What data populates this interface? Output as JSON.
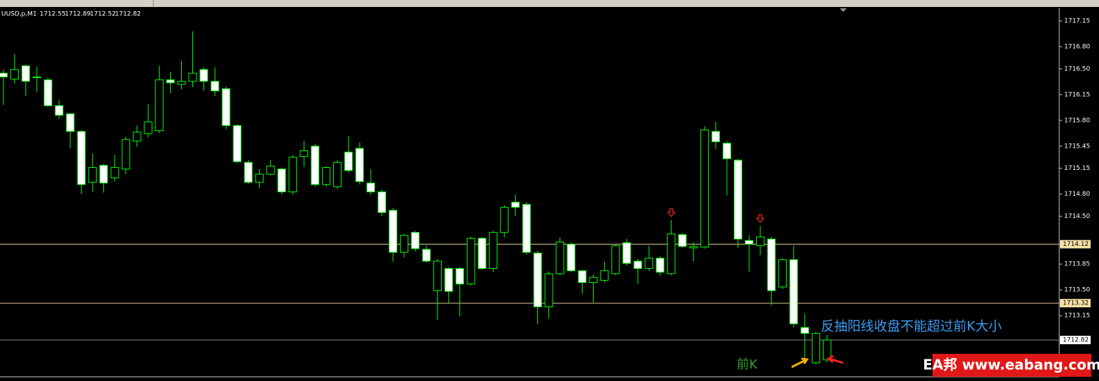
{
  "chart_data": {
    "type": "candlestick",
    "header": {
      "symbol": "UUSD,p,M1",
      "ohlc": [
        1712.55,
        1712.89,
        1712.52,
        1712.82
      ]
    },
    "ylim": [
      1712.33,
      1717.32
    ],
    "yticks": [
      {
        "value": 1717.15,
        "label": "1717.15"
      },
      {
        "value": 1716.8,
        "label": "1716.80"
      },
      {
        "value": 1716.5,
        "label": "1716.50"
      },
      {
        "value": 1716.15,
        "label": "1716.15"
      },
      {
        "value": 1715.8,
        "label": "1715.80"
      },
      {
        "value": 1715.45,
        "label": "1715.45"
      },
      {
        "value": 1715.15,
        "label": "1715.15"
      },
      {
        "value": 1714.8,
        "label": "1714.80"
      },
      {
        "value": 1714.5,
        "label": "1714.50"
      },
      {
        "value": 1713.85,
        "label": "1713.85"
      },
      {
        "value": 1713.5,
        "label": "1713.50"
      },
      {
        "value": 1713.15,
        "label": "1713.15"
      }
    ],
    "hlines": [
      {
        "value": 1714.12,
        "color": "#e6d59c"
      },
      {
        "value": 1713.32,
        "color": "#d9c48e"
      },
      {
        "value": 1712.82,
        "color": "#7a8a99"
      }
    ],
    "bull_color": "#00ff00",
    "bear_fill": "#ffffff",
    "open": [
      1716.44,
      1716.36,
      1716.54,
      1716.39,
      1716.35,
      1716.0,
      1715.89,
      1715.65,
      1714.96,
      1715.19,
      1715.02,
      1715.14,
      1715.52,
      1715.62,
      1715.66,
      1716.35,
      1716.29,
      1716.33,
      1716.49,
      1716.33,
      1716.23,
      1715.73,
      1715.23,
      1714.96,
      1715.07,
      1715.14,
      1714.83,
      1715.31,
      1715.45,
      1714.93,
      1714.9,
      1715.37,
      1715.42,
      1714.95,
      1714.83,
      1714.58,
      1714.01,
      1714.28,
      1714.05,
      1713.49,
      1713.79,
      1713.79,
      1713.58,
      1714.2,
      1713.79,
      1714.28,
      1714.69,
      1714.66,
      1714.0,
      1713.27,
      1713.72,
      1714.12,
      1713.76,
      1713.6,
      1713.63,
      1713.72,
      1714.14,
      1713.89,
      1713.79,
      1713.93,
      1713.72,
      1714.25,
      1714.07,
      1714.08,
      1715.65,
      1715.49,
      1715.26,
      1714.17,
      1714.1,
      1714.19,
      1713.54,
      1713.91,
      1712.99,
      1712.51,
      1712.55
    ],
    "high": [
      1716.49,
      1716.7,
      1716.56,
      1716.53,
      1716.38,
      1716.08,
      1715.89,
      1715.67,
      1715.35,
      1715.21,
      1715.33,
      1715.58,
      1715.73,
      1716.02,
      1716.54,
      1716.46,
      1716.61,
      1717.01,
      1716.52,
      1716.52,
      1716.26,
      1715.75,
      1715.26,
      1715.14,
      1715.26,
      1715.16,
      1715.33,
      1715.52,
      1715.48,
      1715.18,
      1715.26,
      1715.59,
      1715.5,
      1715.14,
      1714.86,
      1714.61,
      1714.26,
      1714.3,
      1714.1,
      1713.92,
      1713.81,
      1713.81,
      1714.22,
      1714.22,
      1714.3,
      1714.65,
      1714.79,
      1714.69,
      1714.03,
      1713.75,
      1714.21,
      1714.14,
      1713.77,
      1713.71,
      1713.88,
      1714.12,
      1714.19,
      1713.92,
      1714.1,
      1713.96,
      1714.45,
      1714.27,
      1714.15,
      1715.72,
      1715.78,
      1715.52,
      1715.28,
      1714.24,
      1714.37,
      1714.22,
      1713.93,
      1714.1,
      1713.18,
      1712.93,
      1712.89
    ],
    "low": [
      1716.01,
      1716.3,
      1716.13,
      1716.18,
      1715.98,
      1715.82,
      1715.42,
      1714.8,
      1714.83,
      1714.82,
      1714.97,
      1715.07,
      1715.44,
      1715.57,
      1715.63,
      1716.17,
      1716.22,
      1716.25,
      1716.2,
      1716.13,
      1715.68,
      1715.22,
      1714.94,
      1714.88,
      1715.05,
      1714.8,
      1714.79,
      1715.17,
      1714.9,
      1714.9,
      1714.87,
      1715.09,
      1714.93,
      1714.79,
      1714.5,
      1713.88,
      1713.94,
      1714.02,
      1713.87,
      1713.09,
      1713.32,
      1713.14,
      1713.56,
      1713.77,
      1713.74,
      1714.21,
      1714.5,
      1713.98,
      1713.04,
      1713.11,
      1713.7,
      1713.74,
      1713.45,
      1713.33,
      1713.6,
      1713.7,
      1713.83,
      1713.58,
      1713.76,
      1713.69,
      1713.7,
      1714.07,
      1713.89,
      1714.06,
      1715.41,
      1714.78,
      1714.07,
      1713.75,
      1713.97,
      1713.29,
      1713.51,
      1712.99,
      1712.51,
      1712.49,
      1712.52
    ],
    "close": [
      1716.39,
      1716.49,
      1716.33,
      1716.38,
      1716.0,
      1715.87,
      1715.65,
      1714.93,
      1715.16,
      1714.95,
      1715.16,
      1715.54,
      1715.64,
      1715.78,
      1716.35,
      1716.31,
      1716.33,
      1716.44,
      1716.33,
      1716.2,
      1715.73,
      1715.24,
      1714.96,
      1715.07,
      1715.18,
      1714.83,
      1715.3,
      1715.39,
      1714.93,
      1715.16,
      1715.23,
      1715.12,
      1714.97,
      1714.83,
      1714.55,
      1714.01,
      1714.24,
      1714.06,
      1713.89,
      1713.89,
      1713.48,
      1713.58,
      1714.2,
      1713.79,
      1714.28,
      1714.62,
      1714.62,
      1714.01,
      1713.27,
      1713.72,
      1714.15,
      1713.76,
      1713.6,
      1713.67,
      1713.76,
      1714.1,
      1713.86,
      1713.79,
      1713.93,
      1713.74,
      1714.26,
      1714.09,
      1714.09,
      1715.67,
      1715.51,
      1715.28,
      1714.19,
      1714.12,
      1714.22,
      1713.49,
      1713.91,
      1713.04,
      1712.91,
      1712.91,
      1712.82
    ],
    "signal_arrows": [
      60,
      68
    ],
    "annotations": [
      "反抽阳线收盘不能超过前K大小",
      "前K"
    ],
    "watermark": "EA邦 www.eabang.com"
  }
}
